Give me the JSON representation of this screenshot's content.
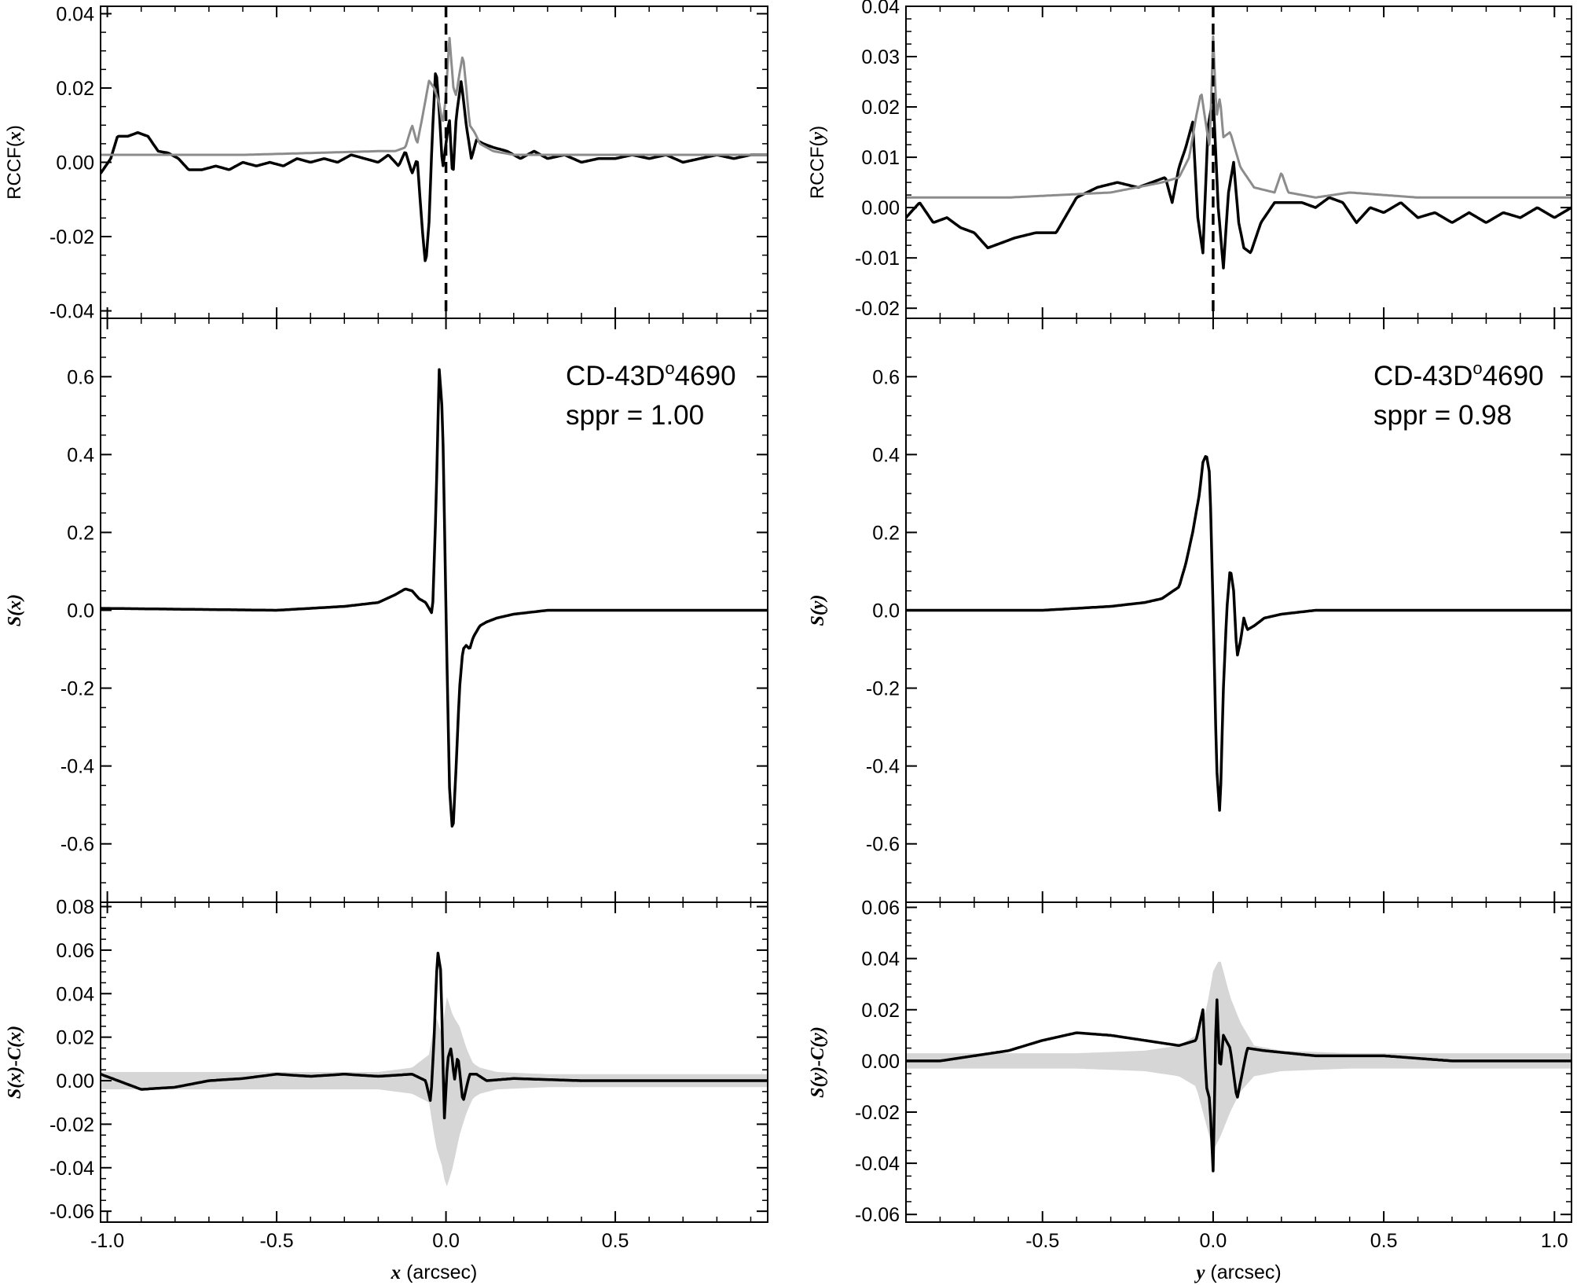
{
  "figure": {
    "columns": [
      {
        "id": "left",
        "var": "x",
        "xlim": [
          -1.02,
          0.95
        ],
        "xticks": [
          -1.0,
          -0.5,
          0.0,
          0.5
        ],
        "xticklabels": [
          "-1.0",
          "-0.5",
          "0.0",
          "0.5"
        ],
        "xlabel": {
          "var": "x",
          "unit": " (arcsec)"
        },
        "annotation": {
          "name": "CD-43D",
          "sup": "o",
          "number": "4690",
          "sppr": "sppr = 1.00"
        },
        "panels": [
          {
            "id": "rccf",
            "ylabel": {
              "pre": "RCCF(",
              "var": "x",
              "post": ")"
            },
            "ylim": [
              -0.042,
              0.042
            ],
            "yticks": [
              -0.04,
              -0.02,
              0.0,
              0.02,
              0.04
            ],
            "yticklabels": [
              "-0.04",
              "-0.02",
              "0.00",
              "0.02",
              "0.04"
            ]
          },
          {
            "id": "signal",
            "ylabel": {
              "pre": "",
              "var": "S(x)",
              "post": ""
            },
            "ylim": [
              -0.75,
              0.75
            ],
            "yticks": [
              -0.6,
              -0.4,
              -0.2,
              0.0,
              0.2,
              0.4,
              0.6
            ],
            "yticklabels": [
              "-0.6",
              "-0.4",
              "-0.2",
              "0.0",
              "0.2",
              "0.4",
              "0.6"
            ]
          },
          {
            "id": "residual",
            "ylabel": {
              "pre": "",
              "var": "S(x)-C(x)",
              "post": ""
            },
            "ylim": [
              -0.065,
              0.082
            ],
            "yticks": [
              -0.06,
              -0.04,
              -0.02,
              0.0,
              0.02,
              0.04,
              0.06,
              0.08
            ],
            "yticklabels": [
              "-0.06",
              "-0.04",
              "-0.02",
              "0.00",
              "0.02",
              "0.04",
              "0.06",
              "0.08"
            ]
          }
        ]
      },
      {
        "id": "right",
        "var": "y",
        "xlim": [
          -0.9,
          1.05
        ],
        "xticks": [
          -0.5,
          0.0,
          0.5,
          1.0
        ],
        "xticklabels": [
          "-0.5",
          "0.0",
          "0.5",
          "1.0"
        ],
        "xlabel": {
          "var": "y",
          "unit": " (arcsec)"
        },
        "annotation": {
          "name": "CD-43D",
          "sup": "o",
          "number": "4690",
          "sppr": "sppr = 0.98"
        },
        "panels": [
          {
            "id": "rccf",
            "ylabel": {
              "pre": "RCCF(",
              "var": "y",
              "post": ")"
            },
            "ylim": [
              -0.022,
              0.04
            ],
            "yticks": [
              -0.02,
              -0.01,
              0.0,
              0.01,
              0.02,
              0.03,
              0.04
            ],
            "yticklabels": [
              "-0.02",
              "-0.01",
              "0.00",
              "0.01",
              "0.02",
              "0.03",
              "0.04"
            ]
          },
          {
            "id": "signal",
            "ylabel": {
              "pre": "",
              "var": "S(y)",
              "post": ""
            },
            "ylim": [
              -0.75,
              0.75
            ],
            "yticks": [
              -0.6,
              -0.4,
              -0.2,
              0.0,
              0.2,
              0.4,
              0.6
            ],
            "yticklabels": [
              "-0.6",
              "-0.4",
              "-0.2",
              "0.0",
              "0.2",
              "0.4",
              "0.6"
            ]
          },
          {
            "id": "residual",
            "ylabel": {
              "pre": "",
              "var": "S(y)-C(y)",
              "post": ""
            },
            "ylim": [
              -0.063,
              0.062
            ],
            "yticks": [
              -0.06,
              -0.04,
              -0.02,
              0.0,
              0.02,
              0.04,
              0.06
            ],
            "yticklabels": [
              "-0.06",
              "-0.04",
              "-0.02",
              "0.00",
              "0.02",
              "0.04",
              "0.06"
            ]
          }
        ]
      }
    ],
    "colors": {
      "data": "#000000",
      "model": "#8c8c8c",
      "band": "#d6d6d6"
    }
  },
  "chart_data": [
    {
      "type": "line",
      "panel": "left-top",
      "xlabel": "",
      "ylabel": "RCCF(x)",
      "xlim": [
        -1.02,
        0.95
      ],
      "ylim": [
        -0.042,
        0.042
      ],
      "vline_dashed_at": 0.0,
      "series": [
        {
          "color": "black",
          "x": [
            -1.02,
            -0.99,
            -0.97,
            -0.94,
            -0.91,
            -0.88,
            -0.85,
            -0.82,
            -0.79,
            -0.76,
            -0.72,
            -0.68,
            -0.64,
            -0.6,
            -0.56,
            -0.52,
            -0.48,
            -0.44,
            -0.4,
            -0.36,
            -0.32,
            -0.28,
            -0.24,
            -0.2,
            -0.17,
            -0.14,
            -0.12,
            -0.1,
            -0.085,
            -0.07,
            -0.06,
            -0.05,
            -0.04,
            -0.03,
            -0.02,
            -0.01,
            0.0,
            0.01,
            0.02,
            0.03,
            0.045,
            0.06,
            0.075,
            0.09,
            0.11,
            0.14,
            0.18,
            0.22,
            0.26,
            0.3,
            0.35,
            0.4,
            0.45,
            0.5,
            0.55,
            0.6,
            0.65,
            0.7,
            0.75,
            0.8,
            0.85,
            0.9,
            0.95
          ],
          "y": [
            -0.003,
            0.001,
            0.007,
            0.007,
            0.008,
            0.007,
            0.003,
            0.0025,
            0.001,
            -0.002,
            -0.002,
            -0.001,
            -0.002,
            0.0,
            -0.001,
            0.0,
            -0.001,
            0.001,
            0.0,
            0.001,
            0.0,
            0.002,
            0.001,
            0.0,
            0.002,
            -0.001,
            0.003,
            -0.003,
            0.001,
            -0.018,
            -0.028,
            -0.016,
            0.008,
            0.026,
            0.014,
            -0.002,
            0.005,
            0.012,
            -0.005,
            0.012,
            0.022,
            0.01,
            0.001,
            0.006,
            0.005,
            0.004,
            0.003,
            0.001,
            0.003,
            0.001,
            0.002,
            0.0,
            0.001,
            0.001,
            0.002,
            0.001,
            0.002,
            0.0,
            0.001,
            0.002,
            0.001,
            0.002,
            0.002
          ]
        },
        {
          "color": "gray",
          "x": [
            -1.02,
            -0.6,
            -0.2,
            -0.15,
            -0.12,
            -0.1,
            -0.085,
            -0.07,
            -0.05,
            -0.035,
            -0.02,
            -0.01,
            0.0,
            0.01,
            0.022,
            0.03,
            0.04,
            0.05,
            0.06,
            0.07,
            0.085,
            0.1,
            0.12,
            0.14,
            0.2,
            0.4,
            0.95
          ],
          "y": [
            0.002,
            0.002,
            0.003,
            0.003,
            0.004,
            0.01,
            0.005,
            0.012,
            0.022,
            0.02,
            0.016,
            0.01,
            0.018,
            0.034,
            0.02,
            0.018,
            0.024,
            0.029,
            0.02,
            0.01,
            0.008,
            0.005,
            0.004,
            0.003,
            0.002,
            0.002,
            0.002
          ]
        }
      ]
    },
    {
      "type": "line",
      "panel": "left-middle",
      "xlabel": "",
      "ylabel": "S(x)",
      "xlim": [
        -1.02,
        0.95
      ],
      "ylim": [
        -0.75,
        0.75
      ],
      "series": [
        {
          "color": "black",
          "x": [
            -1.02,
            -0.5,
            -0.3,
            -0.2,
            -0.15,
            -0.12,
            -0.1,
            -0.08,
            -0.06,
            -0.04,
            -0.03,
            -0.02,
            -0.01,
            0.0,
            0.01,
            0.02,
            0.03,
            0.04,
            0.05,
            0.06,
            0.07,
            0.08,
            0.1,
            0.12,
            0.15,
            0.2,
            0.3,
            0.5,
            0.95
          ],
          "y": [
            0.005,
            0.0,
            0.01,
            0.02,
            0.04,
            0.055,
            0.05,
            0.03,
            0.02,
            -0.01,
            0.25,
            0.62,
            0.5,
            0.0,
            -0.45,
            -0.58,
            -0.4,
            -0.2,
            -0.1,
            -0.09,
            -0.1,
            -0.07,
            -0.04,
            -0.03,
            -0.02,
            -0.01,
            0.0,
            0.0,
            0.0
          ]
        }
      ]
    },
    {
      "type": "line",
      "panel": "left-bottom",
      "xlabel": "x (arcsec)",
      "ylabel": "S(x)-C(x)",
      "xlim": [
        -1.02,
        0.95
      ],
      "ylim": [
        -0.065,
        0.082
      ],
      "series": [
        {
          "color": "black",
          "x": [
            -1.02,
            -0.9,
            -0.8,
            -0.7,
            -0.6,
            -0.5,
            -0.4,
            -0.3,
            -0.2,
            -0.1,
            -0.06,
            -0.045,
            -0.035,
            -0.025,
            -0.015,
            -0.005,
            0.005,
            0.015,
            0.025,
            0.035,
            0.05,
            0.07,
            0.09,
            0.12,
            0.2,
            0.4,
            0.6,
            0.8,
            0.95
          ],
          "y": [
            0.003,
            -0.004,
            -0.003,
            0.0,
            0.001,
            0.003,
            0.002,
            0.003,
            0.002,
            0.003,
            0.0,
            -0.01,
            0.02,
            0.06,
            0.05,
            -0.018,
            0.01,
            0.015,
            0.0,
            0.012,
            -0.01,
            0.003,
            0.003,
            0.0,
            0.001,
            0.0,
            0.0,
            0.0,
            0.0
          ]
        },
        {
          "color": "lightgray",
          "kind": "band",
          "x": [
            -1.02,
            -0.2,
            -0.1,
            -0.05,
            -0.03,
            -0.01,
            0.0,
            0.02,
            0.04,
            0.06,
            0.08,
            0.1,
            0.15,
            0.3,
            0.95
          ],
          "upper": [
            0.004,
            0.004,
            0.006,
            0.012,
            0.03,
            0.02,
            0.04,
            0.03,
            0.025,
            0.015,
            0.008,
            0.006,
            0.004,
            0.003,
            0.003
          ],
          "lower": [
            -0.004,
            -0.004,
            -0.006,
            -0.01,
            -0.03,
            -0.04,
            -0.05,
            -0.04,
            -0.025,
            -0.015,
            -0.008,
            -0.006,
            -0.004,
            -0.003,
            -0.003
          ]
        }
      ]
    },
    {
      "type": "line",
      "panel": "right-top",
      "xlabel": "",
      "ylabel": "RCCF(y)",
      "xlim": [
        -0.9,
        1.05
      ],
      "ylim": [
        -0.022,
        0.04
      ],
      "vline_dashed_at": 0.0,
      "series": [
        {
          "color": "black",
          "x": [
            -0.9,
            -0.86,
            -0.82,
            -0.78,
            -0.74,
            -0.7,
            -0.66,
            -0.62,
            -0.58,
            -0.52,
            -0.46,
            -0.4,
            -0.34,
            -0.28,
            -0.22,
            -0.18,
            -0.14,
            -0.12,
            -0.1,
            -0.08,
            -0.06,
            -0.045,
            -0.03,
            -0.015,
            0.0,
            0.015,
            0.03,
            0.045,
            0.06,
            0.075,
            0.09,
            0.11,
            0.14,
            0.18,
            0.22,
            0.26,
            0.3,
            0.34,
            0.38,
            0.42,
            0.46,
            0.5,
            0.55,
            0.6,
            0.65,
            0.7,
            0.75,
            0.8,
            0.85,
            0.9,
            0.95,
            1.0,
            1.05
          ],
          "y": [
            -0.002,
            0.001,
            -0.003,
            -0.002,
            -0.004,
            -0.005,
            -0.008,
            -0.007,
            -0.006,
            -0.005,
            -0.005,
            0.002,
            0.004,
            0.005,
            0.004,
            0.005,
            0.006,
            0.001,
            0.008,
            0.012,
            0.017,
            -0.002,
            -0.009,
            0.016,
            0.022,
            0.0,
            -0.012,
            0.003,
            0.009,
            -0.003,
            -0.008,
            -0.009,
            -0.003,
            0.001,
            0.001,
            0.001,
            0.0,
            0.002,
            0.001,
            -0.003,
            0.0,
            -0.001,
            0.001,
            -0.002,
            -0.001,
            -0.003,
            -0.001,
            -0.003,
            -0.001,
            -0.002,
            0.0,
            -0.002,
            0.0
          ]
        },
        {
          "color": "gray",
          "x": [
            -0.9,
            -0.6,
            -0.3,
            -0.15,
            -0.1,
            -0.07,
            -0.05,
            -0.035,
            -0.02,
            -0.01,
            0.0,
            0.01,
            0.02,
            0.03,
            0.05,
            0.08,
            0.12,
            0.18,
            0.2,
            0.22,
            0.3,
            0.4,
            0.6,
            0.8,
            1.05
          ],
          "y": [
            0.002,
            0.002,
            0.003,
            0.005,
            0.006,
            0.01,
            0.018,
            0.023,
            0.016,
            0.012,
            0.034,
            0.018,
            0.022,
            0.014,
            0.015,
            0.008,
            0.004,
            0.003,
            0.007,
            0.003,
            0.002,
            0.003,
            0.002,
            0.002,
            0.002
          ]
        }
      ]
    },
    {
      "type": "line",
      "panel": "right-middle",
      "xlabel": "",
      "ylabel": "S(y)",
      "xlim": [
        -0.9,
        1.05
      ],
      "ylim": [
        -0.75,
        0.75
      ],
      "series": [
        {
          "color": "black",
          "x": [
            -0.9,
            -0.5,
            -0.3,
            -0.2,
            -0.15,
            -0.1,
            -0.08,
            -0.06,
            -0.04,
            -0.03,
            -0.02,
            -0.01,
            0.0,
            0.01,
            0.02,
            0.03,
            0.04,
            0.05,
            0.06,
            0.07,
            0.08,
            0.09,
            0.1,
            0.12,
            0.15,
            0.2,
            0.3,
            0.5,
            1.05
          ],
          "y": [
            0.0,
            0.0,
            0.01,
            0.02,
            0.03,
            0.06,
            0.12,
            0.2,
            0.3,
            0.38,
            0.4,
            0.35,
            0.0,
            -0.4,
            -0.53,
            -0.2,
            0.0,
            0.11,
            0.05,
            -0.12,
            -0.08,
            -0.02,
            -0.05,
            -0.04,
            -0.02,
            -0.01,
            0.0,
            0.0,
            0.0
          ]
        }
      ]
    },
    {
      "type": "line",
      "panel": "right-bottom",
      "xlabel": "y (arcsec)",
      "ylabel": "S(y)-C(y)",
      "xlim": [
        -0.9,
        1.05
      ],
      "ylim": [
        -0.063,
        0.062
      ],
      "series": [
        {
          "color": "black",
          "x": [
            -0.9,
            -0.8,
            -0.7,
            -0.6,
            -0.5,
            -0.4,
            -0.3,
            -0.2,
            -0.1,
            -0.05,
            -0.03,
            -0.02,
            -0.01,
            0.0,
            0.01,
            0.02,
            0.03,
            0.05,
            0.07,
            0.1,
            0.15,
            0.3,
            0.5,
            0.7,
            0.9,
            1.05
          ],
          "y": [
            0.0,
            0.0,
            0.002,
            0.004,
            0.008,
            0.011,
            0.01,
            0.008,
            0.006,
            0.008,
            0.02,
            -0.01,
            -0.015,
            -0.043,
            0.028,
            -0.005,
            0.01,
            0.005,
            -0.015,
            0.005,
            0.004,
            0.002,
            0.002,
            0.0,
            0.0,
            0.0
          ]
        },
        {
          "color": "lightgray",
          "kind": "band",
          "x": [
            -0.9,
            -0.4,
            -0.2,
            -0.1,
            -0.05,
            -0.02,
            0.0,
            0.02,
            0.05,
            0.08,
            0.12,
            0.2,
            0.4,
            1.05
          ],
          "upper": [
            0.003,
            0.003,
            0.004,
            0.006,
            0.01,
            0.02,
            0.035,
            0.04,
            0.025,
            0.015,
            0.006,
            0.004,
            0.003,
            0.003
          ],
          "lower": [
            -0.003,
            -0.003,
            -0.004,
            -0.006,
            -0.01,
            -0.025,
            -0.035,
            -0.03,
            -0.02,
            -0.012,
            -0.006,
            -0.004,
            -0.003,
            -0.003
          ]
        }
      ]
    }
  ]
}
